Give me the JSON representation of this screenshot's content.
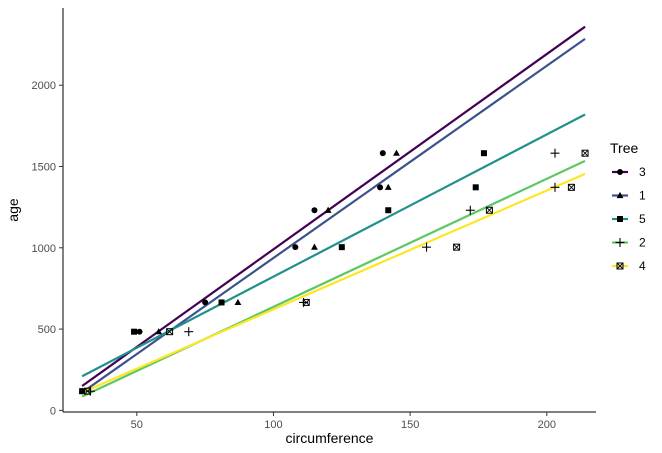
{
  "chart_data": {
    "type": "scatter",
    "xlabel": "circumference",
    "ylabel": "age",
    "xlim": [
      23,
      218
    ],
    "ylim": [
      -10,
      2475
    ],
    "x_ticks": [
      50,
      100,
      150,
      200
    ],
    "y_ticks": [
      0,
      500,
      1000,
      1500,
      2000
    ],
    "grid": false,
    "legend": {
      "title": "Tree",
      "position": "right"
    },
    "series": [
      {
        "name": "3",
        "color": "#440154",
        "shape": "circle",
        "points": [
          [
            30,
            118
          ],
          [
            51,
            484
          ],
          [
            75,
            664
          ],
          [
            108,
            1004
          ],
          [
            115,
            1231
          ],
          [
            139,
            1372
          ],
          [
            140,
            1582
          ]
        ],
        "fit_line": {
          "x": [
            30,
            214
          ],
          "y": [
            150,
            2360
          ]
        }
      },
      {
        "name": "1",
        "color": "#3B528B",
        "shape": "triangle",
        "points": [
          [
            30,
            118
          ],
          [
            58,
            484
          ],
          [
            87,
            664
          ],
          [
            115,
            1004
          ],
          [
            120,
            1231
          ],
          [
            142,
            1372
          ],
          [
            145,
            1582
          ]
        ],
        "fit_line": {
          "x": [
            30,
            214
          ],
          "y": [
            110,
            2285
          ]
        }
      },
      {
        "name": "5",
        "color": "#21908C",
        "shape": "square",
        "points": [
          [
            30,
            118
          ],
          [
            49,
            484
          ],
          [
            81,
            664
          ],
          [
            125,
            1004
          ],
          [
            142,
            1231
          ],
          [
            174,
            1372
          ],
          [
            177,
            1582
          ]
        ],
        "fit_line": {
          "x": [
            30,
            214
          ],
          "y": [
            210,
            1820
          ]
        }
      },
      {
        "name": "2",
        "color": "#5DC863",
        "shape": "plus",
        "points": [
          [
            33,
            118
          ],
          [
            69,
            484
          ],
          [
            111,
            664
          ],
          [
            156,
            1004
          ],
          [
            172,
            1231
          ],
          [
            203,
            1372
          ],
          [
            203,
            1582
          ]
        ],
        "fit_line": {
          "x": [
            30,
            214
          ],
          "y": [
            85,
            1535
          ]
        }
      },
      {
        "name": "4",
        "color": "#FDE725",
        "shape": "boxcross",
        "points": [
          [
            32,
            118
          ],
          [
            62,
            484
          ],
          [
            112,
            664
          ],
          [
            167,
            1004
          ],
          [
            179,
            1231
          ],
          [
            209,
            1372
          ],
          [
            214,
            1582
          ]
        ],
        "fit_line": {
          "x": [
            30,
            214
          ],
          "y": [
            110,
            1455
          ]
        }
      }
    ]
  }
}
